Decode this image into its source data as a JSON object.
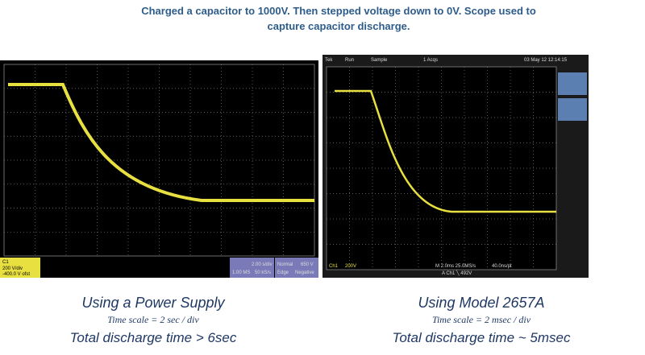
{
  "header": {
    "lines": [
      "Charged a capacitor  to 1000V.  Then stepped voltage down to 0V. Scope used to",
      "capture capacitor  discharge."
    ]
  },
  "panels": [
    {
      "caption": "Using a Power Supply",
      "time_scale": "Time scale = 2 sec / div",
      "discharge": "Total discharge time > 6sec",
      "scope": {
        "channel": "C1",
        "volts": "200 V/div",
        "offset": "-400.0 V ofst",
        "timebase": "2.00 s/div",
        "record": "1.00 MS",
        "rate": "50 kS/s",
        "mode": "Normal",
        "trigger_type": "Edge",
        "trigger_level": "650 V",
        "slope": "Negative"
      }
    },
    {
      "caption": "Using Model 2657A",
      "time_scale": "Time scale = 2 msec / div",
      "discharge": "Total discharge time ~ 5msec",
      "scope": {
        "brand": "Tek",
        "state": "Run",
        "acq": "Sample",
        "count": "1 Acqs",
        "date": "03 May 12 12:14:15",
        "channel": "Ch1",
        "volts": "200V",
        "timebase": "M 2.0ms 25.0MS/s",
        "point": "40.0ns/pt",
        "trigger": "A  Ch1 ╲ 492V"
      }
    }
  ]
}
